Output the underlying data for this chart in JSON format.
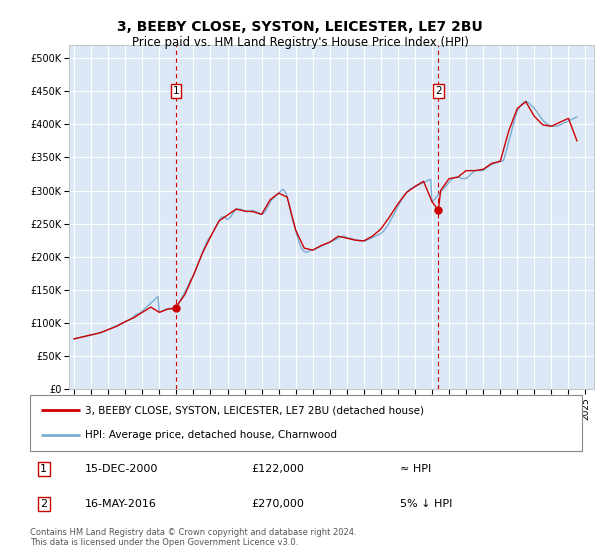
{
  "title": "3, BEEBY CLOSE, SYSTON, LEICESTER, LE7 2BU",
  "subtitle": "Price paid vs. HM Land Registry's House Price Index (HPI)",
  "ylabel_ticks": [
    "£0",
    "£50K",
    "£100K",
    "£150K",
    "£200K",
    "£250K",
    "£300K",
    "£350K",
    "£400K",
    "£450K",
    "£500K"
  ],
  "ytick_vals": [
    0,
    50000,
    100000,
    150000,
    200000,
    250000,
    300000,
    350000,
    400000,
    450000,
    500000
  ],
  "ylim": [
    0,
    520000
  ],
  "xlim_start": 1994.7,
  "xlim_end": 2025.5,
  "xticks": [
    1995,
    1996,
    1997,
    1998,
    1999,
    2000,
    2001,
    2002,
    2003,
    2004,
    2005,
    2006,
    2007,
    2008,
    2009,
    2010,
    2011,
    2012,
    2013,
    2014,
    2015,
    2016,
    2017,
    2018,
    2019,
    2020,
    2021,
    2022,
    2023,
    2024,
    2025
  ],
  "background_color": "#dce8f5",
  "plot_bg": "#dce8f5",
  "grid_color": "#ffffff",
  "hpi_line_color": "#7aadd4",
  "price_line_color": "#cc0000",
  "marker1_x": 2000.96,
  "marker1_y": 122000,
  "marker2_x": 2016.37,
  "marker2_y": 270000,
  "legend_line1": "3, BEEBY CLOSE, SYSTON, LEICESTER, LE7 2BU (detached house)",
  "legend_line2": "HPI: Average price, detached house, Charnwood",
  "annotation1_date": "15-DEC-2000",
  "annotation1_price": "£122,000",
  "annotation1_hpi": "≈ HPI",
  "annotation2_date": "16-MAY-2016",
  "annotation2_price": "£270,000",
  "annotation2_hpi": "5% ↓ HPI",
  "footer": "Contains HM Land Registry data © Crown copyright and database right 2024.\nThis data is licensed under the Open Government Licence v3.0.",
  "dashed_line1_x": 2000.96,
  "dashed_line2_x": 2016.37,
  "hpi_data_x": [
    1995.0,
    1995.08,
    1995.17,
    1995.25,
    1995.33,
    1995.42,
    1995.5,
    1995.58,
    1995.67,
    1995.75,
    1995.83,
    1995.92,
    1996.0,
    1996.08,
    1996.17,
    1996.25,
    1996.33,
    1996.42,
    1996.5,
    1996.58,
    1996.67,
    1996.75,
    1996.83,
    1996.92,
    1997.0,
    1997.08,
    1997.17,
    1997.25,
    1997.33,
    1997.42,
    1997.5,
    1997.58,
    1997.67,
    1997.75,
    1997.83,
    1997.92,
    1998.0,
    1998.08,
    1998.17,
    1998.25,
    1998.33,
    1998.42,
    1998.5,
    1998.58,
    1998.67,
    1998.75,
    1998.83,
    1998.92,
    1999.0,
    1999.08,
    1999.17,
    1999.25,
    1999.33,
    1999.42,
    1999.5,
    1999.58,
    1999.67,
    1999.75,
    1999.83,
    1999.92,
    2000.0,
    2000.08,
    2000.17,
    2000.25,
    2000.33,
    2000.42,
    2000.5,
    2000.58,
    2000.67,
    2000.75,
    2000.83,
    2000.92,
    2001.0,
    2001.08,
    2001.17,
    2001.25,
    2001.33,
    2001.42,
    2001.5,
    2001.58,
    2001.67,
    2001.75,
    2001.83,
    2001.92,
    2002.0,
    2002.08,
    2002.17,
    2002.25,
    2002.33,
    2002.42,
    2002.5,
    2002.58,
    2002.67,
    2002.75,
    2002.83,
    2002.92,
    2003.0,
    2003.08,
    2003.17,
    2003.25,
    2003.33,
    2003.42,
    2003.5,
    2003.58,
    2003.67,
    2003.75,
    2003.83,
    2003.92,
    2004.0,
    2004.08,
    2004.17,
    2004.25,
    2004.33,
    2004.42,
    2004.5,
    2004.58,
    2004.67,
    2004.75,
    2004.83,
    2004.92,
    2005.0,
    2005.08,
    2005.17,
    2005.25,
    2005.33,
    2005.42,
    2005.5,
    2005.58,
    2005.67,
    2005.75,
    2005.83,
    2005.92,
    2006.0,
    2006.08,
    2006.17,
    2006.25,
    2006.33,
    2006.42,
    2006.5,
    2006.58,
    2006.67,
    2006.75,
    2006.83,
    2006.92,
    2007.0,
    2007.08,
    2007.17,
    2007.25,
    2007.33,
    2007.42,
    2007.5,
    2007.58,
    2007.67,
    2007.75,
    2007.83,
    2007.92,
    2008.0,
    2008.08,
    2008.17,
    2008.25,
    2008.33,
    2008.42,
    2008.5,
    2008.58,
    2008.67,
    2008.75,
    2008.83,
    2008.92,
    2009.0,
    2009.08,
    2009.17,
    2009.25,
    2009.33,
    2009.42,
    2009.5,
    2009.58,
    2009.67,
    2009.75,
    2009.83,
    2009.92,
    2010.0,
    2010.08,
    2010.17,
    2010.25,
    2010.33,
    2010.42,
    2010.5,
    2010.58,
    2010.67,
    2010.75,
    2010.83,
    2010.92,
    2011.0,
    2011.08,
    2011.17,
    2011.25,
    2011.33,
    2011.42,
    2011.5,
    2011.58,
    2011.67,
    2011.75,
    2011.83,
    2011.92,
    2012.0,
    2012.08,
    2012.17,
    2012.25,
    2012.33,
    2012.42,
    2012.5,
    2012.58,
    2012.67,
    2012.75,
    2012.83,
    2012.92,
    2013.0,
    2013.08,
    2013.17,
    2013.25,
    2013.33,
    2013.42,
    2013.5,
    2013.58,
    2013.67,
    2013.75,
    2013.83,
    2013.92,
    2014.0,
    2014.08,
    2014.17,
    2014.25,
    2014.33,
    2014.42,
    2014.5,
    2014.58,
    2014.67,
    2014.75,
    2014.83,
    2014.92,
    2015.0,
    2015.08,
    2015.17,
    2015.25,
    2015.33,
    2015.42,
    2015.5,
    2015.58,
    2015.67,
    2015.75,
    2015.83,
    2015.92,
    2016.0,
    2016.08,
    2016.17,
    2016.25,
    2016.33,
    2016.42,
    2016.5,
    2016.58,
    2016.67,
    2016.75,
    2016.83,
    2016.92,
    2017.0,
    2017.08,
    2017.17,
    2017.25,
    2017.33,
    2017.42,
    2017.5,
    2017.58,
    2017.67,
    2017.75,
    2017.83,
    2017.92,
    2018.0,
    2018.08,
    2018.17,
    2018.25,
    2018.33,
    2018.42,
    2018.5,
    2018.58,
    2018.67,
    2018.75,
    2018.83,
    2018.92,
    2019.0,
    2019.08,
    2019.17,
    2019.25,
    2019.33,
    2019.42,
    2019.5,
    2019.58,
    2019.67,
    2019.75,
    2019.83,
    2019.92,
    2020.0,
    2020.08,
    2020.17,
    2020.25,
    2020.33,
    2020.42,
    2020.5,
    2020.58,
    2020.67,
    2020.75,
    2020.83,
    2020.92,
    2021.0,
    2021.08,
    2021.17,
    2021.25,
    2021.33,
    2021.42,
    2021.5,
    2021.58,
    2021.67,
    2021.75,
    2021.83,
    2021.92,
    2022.0,
    2022.08,
    2022.17,
    2022.25,
    2022.33,
    2022.42,
    2022.5,
    2022.58,
    2022.67,
    2022.75,
    2022.83,
    2022.92,
    2023.0,
    2023.08,
    2023.17,
    2023.25,
    2023.33,
    2023.42,
    2023.5,
    2023.58,
    2023.67,
    2023.75,
    2023.83,
    2023.92,
    2024.0,
    2024.08,
    2024.17,
    2024.25,
    2024.33,
    2024.42,
    2024.5
  ],
  "hpi_data_y": [
    76000,
    76500,
    77000,
    77500,
    78000,
    78500,
    79000,
    79500,
    80000,
    80500,
    81000,
    81500,
    82000,
    82500,
    83000,
    83500,
    84000,
    84500,
    85000,
    85500,
    86000,
    87000,
    88000,
    89000,
    90000,
    91000,
    92000,
    93000,
    94000,
    95000,
    96000,
    97000,
    98000,
    99000,
    100000,
    101000,
    102000,
    103000,
    104000,
    105000,
    106000,
    108000,
    110000,
    112000,
    113000,
    114000,
    115000,
    116000,
    118000,
    120000,
    122000,
    124000,
    126000,
    128000,
    130000,
    132000,
    134000,
    136000,
    138000,
    140000,
    116000,
    117000,
    118000,
    119000,
    120000,
    121000,
    121500,
    122000,
    122000,
    122000,
    123000,
    124000,
    125000,
    128000,
    131000,
    135000,
    139000,
    143000,
    147000,
    151000,
    155000,
    160000,
    165000,
    168000,
    172000,
    177000,
    182000,
    187000,
    192000,
    198000,
    204000,
    210000,
    215000,
    220000,
    225000,
    228000,
    230000,
    234000,
    238000,
    242000,
    246000,
    250000,
    254000,
    258000,
    260000,
    260000,
    260000,
    258000,
    256000,
    258000,
    260000,
    263000,
    266000,
    269000,
    271000,
    272000,
    272000,
    272000,
    271000,
    270000,
    269000,
    268000,
    268000,
    269000,
    269000,
    270000,
    270000,
    269000,
    268000,
    267000,
    266000,
    265000,
    264000,
    265000,
    267000,
    270000,
    274000,
    278000,
    282000,
    286000,
    288000,
    290000,
    292000,
    294000,
    296000,
    298000,
    300000,
    302000,
    300000,
    296000,
    290000,
    282000,
    272000,
    262000,
    254000,
    248000,
    240000,
    232000,
    224000,
    218000,
    213000,
    210000,
    208000,
    207000,
    207000,
    208000,
    209000,
    210000,
    210000,
    211000,
    212000,
    213000,
    214000,
    215000,
    216000,
    217000,
    218000,
    219000,
    220000,
    221000,
    222000,
    223000,
    224000,
    225000,
    226000,
    227000,
    228000,
    229000,
    230000,
    231000,
    231000,
    230000,
    229000,
    228000,
    228000,
    228000,
    227000,
    226000,
    226000,
    225000,
    225000,
    224000,
    224000,
    224000,
    224000,
    224000,
    225000,
    226000,
    227000,
    228000,
    229000,
    230000,
    231000,
    232000,
    233000,
    234000,
    235000,
    237000,
    239000,
    242000,
    245000,
    248000,
    252000,
    256000,
    260000,
    264000,
    268000,
    272000,
    276000,
    280000,
    284000,
    288000,
    291000,
    294000,
    297000,
    299000,
    301000,
    303000,
    304000,
    305000,
    306000,
    307000,
    308000,
    309000,
    310000,
    311000,
    312000,
    313000,
    314000,
    315000,
    316000,
    317000,
    283000,
    285000,
    287000,
    290000,
    292000,
    295000,
    297000,
    300000,
    302000,
    305000,
    307000,
    310000,
    312000,
    315000,
    317000,
    319000,
    320000,
    320000,
    320000,
    320000,
    319000,
    318000,
    318000,
    318000,
    318000,
    320000,
    322000,
    324000,
    326000,
    328000,
    330000,
    330000,
    330000,
    330000,
    330000,
    330000,
    330000,
    332000,
    334000,
    335000,
    337000,
    338000,
    339000,
    340000,
    341000,
    342000,
    343000,
    344000,
    344000,
    344000,
    345000,
    350000,
    358000,
    366000,
    374000,
    382000,
    390000,
    398000,
    406000,
    414000,
    420000,
    424000,
    427000,
    430000,
    432000,
    434000,
    435000,
    434000,
    432000,
    430000,
    428000,
    426000,
    424000,
    421000,
    418000,
    415000,
    412000,
    409000,
    406000,
    404000,
    402000,
    400000,
    399000,
    398000,
    397000,
    397000,
    397000,
    397000,
    397000,
    398000,
    399000,
    400000,
    401000,
    402000,
    403000,
    404000,
    405000,
    406000,
    407000,
    408000,
    409000,
    410000,
    411000
  ],
  "price_data_x": [
    1995.0,
    1995.5,
    1996.0,
    1996.5,
    1997.0,
    1997.5,
    1998.0,
    1998.5,
    1999.0,
    1999.5,
    2000.0,
    2000.5,
    2000.96,
    2001.0,
    2001.5,
    2002.0,
    2002.5,
    2003.0,
    2003.5,
    2004.0,
    2004.5,
    2005.0,
    2005.5,
    2006.0,
    2006.5,
    2007.0,
    2007.5,
    2008.0,
    2008.5,
    2009.0,
    2009.5,
    2010.0,
    2010.5,
    2011.0,
    2011.5,
    2012.0,
    2012.5,
    2013.0,
    2013.5,
    2014.0,
    2014.5,
    2015.0,
    2015.5,
    2016.0,
    2016.37,
    2016.5,
    2017.0,
    2017.5,
    2018.0,
    2018.5,
    2019.0,
    2019.5,
    2020.0,
    2020.5,
    2021.0,
    2021.5,
    2022.0,
    2022.5,
    2023.0,
    2023.5,
    2024.0,
    2024.5
  ],
  "price_data_y": [
    76000,
    79000,
    82000,
    85000,
    90000,
    95000,
    102000,
    108000,
    116000,
    124000,
    116000,
    121000,
    122000,
    125000,
    143000,
    172000,
    204000,
    230000,
    254000,
    263000,
    272000,
    269000,
    268000,
    264000,
    286000,
    296000,
    290000,
    240000,
    213000,
    210000,
    217000,
    222000,
    231000,
    228000,
    225000,
    224000,
    231000,
    242000,
    260000,
    280000,
    297000,
    306000,
    314000,
    283000,
    270000,
    300000,
    318000,
    320000,
    330000,
    330000,
    332000,
    341000,
    344000,
    390000,
    424000,
    434000,
    412000,
    399000,
    397000,
    403000,
    409000,
    375000
  ]
}
